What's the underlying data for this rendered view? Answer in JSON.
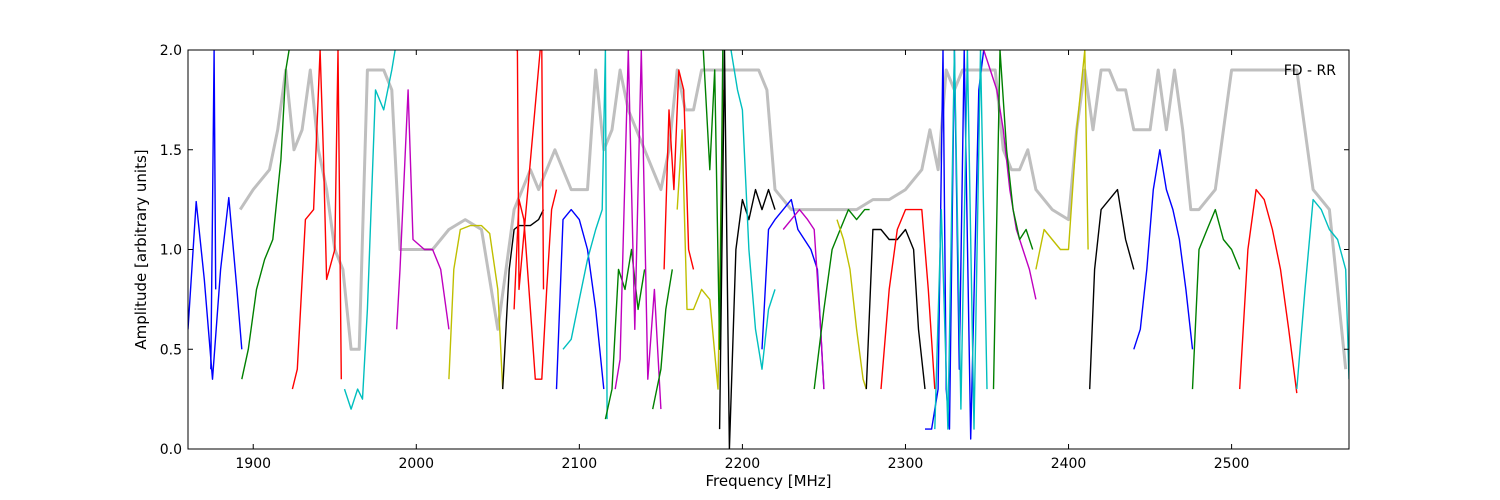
{
  "chart_data": {
    "type": "line",
    "annotation": "FD - RR",
    "xlabel": "Frequency [MHz]",
    "ylabel": "Amplitude [arbitrary units]",
    "xlim": [
      1860,
      2572
    ],
    "ylim": [
      0.0,
      2.0
    ],
    "xticks": [
      1900,
      2000,
      2100,
      2200,
      2300,
      2400,
      2500
    ],
    "yticks": [
      0.0,
      0.5,
      1.0,
      1.5,
      2.0
    ],
    "xtick_labels": [
      "1900",
      "2000",
      "2100",
      "2200",
      "2300",
      "2400",
      "2500"
    ],
    "ytick_labels": [
      "0.0",
      "0.5",
      "1.0",
      "1.5",
      "2.0"
    ],
    "grid": false,
    "colors": {
      "background_trace": "#bfbfbf",
      "b": "#0000ff",
      "g": "#008000",
      "r": "#ff0000",
      "c": "#00bfbf",
      "m": "#bf00bf",
      "y": "#bfbf00",
      "k": "#000000"
    },
    "background_trace": {
      "x": [
        1860,
        1880,
        1890,
        1892,
        1900,
        1910,
        1915,
        1920,
        1925,
        1930,
        1935,
        1940,
        1945,
        1950,
        1955,
        1960,
        1965,
        1970,
        1975,
        1980,
        1985,
        1990,
        2000,
        2010,
        2020,
        2030,
        2040,
        2050,
        2055,
        2060,
        2065,
        2070,
        2075,
        2080,
        2085,
        2090,
        2095,
        2100,
        2105,
        2110,
        2115,
        2120,
        2125,
        2130,
        2135,
        2140,
        2145,
        2150,
        2155,
        2160,
        2165,
        2170,
        2175,
        2180,
        2185,
        2190,
        2195,
        2200,
        2205,
        2210,
        2215,
        2220,
        2230,
        2240,
        2250,
        2260,
        2270,
        2280,
        2290,
        2300,
        2310,
        2315,
        2320,
        2325,
        2330,
        2335,
        2340,
        2345,
        2350,
        2355,
        2360,
        2365,
        2370,
        2375,
        2380,
        2390,
        2400,
        2405,
        2410,
        2415,
        2420,
        2425,
        2430,
        2435,
        2440,
        2445,
        2450,
        2455,
        2460,
        2465,
        2470,
        2475,
        2480,
        2490,
        2500,
        2510,
        2520,
        2530,
        2540,
        2550,
        2560,
        2570
      ],
      "y": [
        null,
        null,
        null,
        1.2,
        1.3,
        1.4,
        1.6,
        1.9,
        1.5,
        1.6,
        1.9,
        1.5,
        1.3,
        1.0,
        0.9,
        0.5,
        0.5,
        1.9,
        1.9,
        1.9,
        1.8,
        1.0,
        1.0,
        1.0,
        1.1,
        1.15,
        1.1,
        0.6,
        0.9,
        1.2,
        1.3,
        1.4,
        1.3,
        1.4,
        1.5,
        1.4,
        1.3,
        1.3,
        1.3,
        1.9,
        1.5,
        1.6,
        1.9,
        1.7,
        1.6,
        1.5,
        1.4,
        1.3,
        1.5,
        1.9,
        1.7,
        1.7,
        1.9,
        1.9,
        1.9,
        1.9,
        1.9,
        1.9,
        1.9,
        1.9,
        1.8,
        1.3,
        1.2,
        1.2,
        1.2,
        1.2,
        1.2,
        1.25,
        1.25,
        1.3,
        1.4,
        1.6,
        1.4,
        1.9,
        1.8,
        1.9,
        1.9,
        1.9,
        1.9,
        1.9,
        1.5,
        1.4,
        1.4,
        1.5,
        1.3,
        1.2,
        1.15,
        1.6,
        1.9,
        1.6,
        1.9,
        1.9,
        1.8,
        1.8,
        1.6,
        1.6,
        1.6,
        1.9,
        1.6,
        1.9,
        1.6,
        1.2,
        1.2,
        1.3,
        1.9,
        1.9,
        1.9,
        1.9,
        1.9,
        1.3,
        1.2,
        0.4
      ]
    },
    "series": [
      {
        "color": "b",
        "x": [
          1860,
          1865,
          1870,
          1875,
          1880,
          1885,
          1890,
          1893
        ],
        "y": [
          0.6,
          1.24,
          0.85,
          0.35,
          0.9,
          1.26,
          0.8,
          0.5
        ]
      },
      {
        "color": "b",
        "x": [
          1874,
          1875,
          1876,
          1877
        ],
        "y": [
          0.4,
          1.2,
          2.0,
          0.8
        ]
      },
      {
        "color": "g",
        "x": [
          1893,
          1897,
          1902,
          1907,
          1912,
          1917,
          1920,
          1922
        ],
        "y": [
          0.35,
          0.5,
          0.8,
          0.95,
          1.05,
          1.45,
          1.9,
          2.0
        ]
      },
      {
        "color": "r",
        "x": [
          1924,
          1927,
          1932,
          1937,
          1941,
          1943,
          1945,
          1950,
          1952,
          1954
        ],
        "y": [
          0.3,
          0.4,
          1.15,
          1.2,
          2.0,
          1.5,
          0.85,
          1.0,
          2.0,
          0.35
        ]
      },
      {
        "color": "c",
        "x": [
          1956,
          1960,
          1964,
          1967,
          1970,
          1975,
          1980,
          1985,
          1987
        ],
        "y": [
          0.3,
          0.2,
          0.3,
          0.25,
          0.7,
          1.8,
          1.7,
          1.9,
          2.0
        ]
      },
      {
        "color": "m",
        "x": [
          1988,
          1990,
          1995,
          1998,
          2005,
          2010,
          2015,
          2020
        ],
        "y": [
          0.6,
          0.9,
          1.8,
          1.05,
          1.0,
          1.0,
          0.9,
          0.6
        ]
      },
      {
        "color": "y",
        "x": [
          2020,
          2023,
          2027,
          2033,
          2040,
          2045,
          2050,
          2053
        ],
        "y": [
          0.35,
          0.9,
          1.1,
          1.12,
          1.12,
          1.08,
          0.8,
          0.3
        ]
      },
      {
        "color": "k",
        "x": [
          2053,
          2057,
          2060,
          2063,
          2065,
          2070,
          2075,
          2078
        ],
        "y": [
          0.3,
          0.9,
          1.1,
          1.12,
          1.12,
          1.12,
          1.15,
          1.2
        ]
      },
      {
        "color": "r",
        "x": [
          2060,
          2063,
          2066,
          2070,
          2073,
          2077,
          2080,
          2083,
          2086
        ],
        "y": [
          0.7,
          1.25,
          1.15,
          0.7,
          0.35,
          0.35,
          0.8,
          1.2,
          1.3
        ]
      },
      {
        "color": "r",
        "x": [
          2061,
          2062,
          2063,
          2076,
          2077,
          2078
        ],
        "y": [
          2.0,
          2.0,
          0.8,
          2.0,
          2.0,
          0.8
        ]
      },
      {
        "color": "b",
        "x": [
          2086,
          2090,
          2095,
          2100,
          2105,
          2110,
          2115
        ],
        "y": [
          0.3,
          1.15,
          1.2,
          1.15,
          1.0,
          0.7,
          0.3
        ]
      },
      {
        "color": "c",
        "x": [
          2090,
          2095,
          2100,
          2105,
          2110,
          2114,
          2116,
          2117
        ],
        "y": [
          0.5,
          0.55,
          0.75,
          0.95,
          1.1,
          1.2,
          2.0,
          0.15
        ]
      },
      {
        "color": "g",
        "x": [
          2116,
          2120,
          2124,
          2128,
          2132,
          2136,
          2140
        ],
        "y": [
          0.15,
          0.3,
          0.9,
          0.8,
          1.0,
          0.7,
          0.9
        ]
      },
      {
        "color": "m",
        "x": [
          2122,
          2125,
          2130,
          2134,
          2138,
          2142,
          2146,
          2150
        ],
        "y": [
          0.3,
          0.45,
          2.0,
          0.6,
          2.0,
          0.35,
          0.8,
          0.2
        ]
      },
      {
        "color": "g",
        "x": [
          2145,
          2150,
          2153,
          2157
        ],
        "y": [
          0.2,
          0.4,
          0.7,
          0.9
        ]
      },
      {
        "color": "r",
        "x": [
          2152,
          2155,
          2158,
          2161,
          2164,
          2167,
          2170
        ],
        "y": [
          0.9,
          1.7,
          1.3,
          1.9,
          1.8,
          1.0,
          0.9
        ]
      },
      {
        "color": "y",
        "x": [
          2160,
          2163,
          2166,
          2170,
          2175,
          2180,
          2185,
          2188
        ],
        "y": [
          1.2,
          1.6,
          0.7,
          0.7,
          0.8,
          0.75,
          0.3,
          1.8
        ]
      },
      {
        "color": "g",
        "x": [
          2176,
          2180,
          2183,
          2186,
          2188
        ],
        "y": [
          2.0,
          1.4,
          1.9,
          0.5,
          2.0
        ]
      },
      {
        "color": "k",
        "x": [
          2186,
          2189,
          2192,
          2196,
          2200,
          2204,
          2208,
          2212,
          2216,
          2220
        ],
        "y": [
          0.1,
          2.0,
          0.0,
          1.0,
          1.25,
          1.15,
          1.3,
          1.2,
          1.3,
          1.2
        ]
      },
      {
        "color": "c",
        "x": [
          2193,
          2197,
          2200,
          2204,
          2208,
          2212,
          2216,
          2220
        ],
        "y": [
          2.0,
          1.8,
          1.7,
          1.0,
          0.6,
          0.4,
          0.7,
          0.8
        ]
      },
      {
        "color": "b",
        "x": [
          2212,
          2216,
          2220,
          2225,
          2230,
          2234,
          2238,
          2242,
          2246,
          2250
        ],
        "y": [
          0.5,
          1.1,
          1.15,
          1.2,
          1.25,
          1.1,
          1.05,
          1.0,
          0.9,
          0.3
        ]
      },
      {
        "color": "m",
        "x": [
          2225,
          2230,
          2235,
          2240,
          2244,
          2248,
          2250
        ],
        "y": [
          1.1,
          1.15,
          1.2,
          1.15,
          1.1,
          0.6,
          0.3
        ]
      },
      {
        "color": "g",
        "x": [
          2244,
          2250,
          2255,
          2260,
          2265,
          2270,
          2275,
          2278
        ],
        "y": [
          0.3,
          0.7,
          1.0,
          1.1,
          1.2,
          1.15,
          1.2,
          1.2
        ]
      },
      {
        "color": "y",
        "x": [
          2258,
          2262,
          2266,
          2270,
          2274,
          2276
        ],
        "y": [
          1.15,
          1.05,
          0.9,
          0.6,
          0.35,
          0.3
        ]
      },
      {
        "color": "k",
        "x": [
          2276,
          2280,
          2285,
          2290,
          2295,
          2300,
          2305,
          2308,
          2312
        ],
        "y": [
          0.3,
          1.1,
          1.1,
          1.05,
          1.05,
          1.1,
          1.0,
          0.6,
          0.3
        ]
      },
      {
        "color": "r",
        "x": [
          2285,
          2290,
          2295,
          2300,
          2305,
          2310,
          2314,
          2318
        ],
        "y": [
          0.3,
          0.8,
          1.1,
          1.2,
          1.2,
          1.2,
          0.8,
          0.3
        ]
      },
      {
        "color": "b",
        "x": [
          2312,
          2316,
          2320,
          2323,
          2325,
          2327,
          2330,
          2333,
          2336,
          2340,
          2345,
          2348
        ],
        "y": [
          0.1,
          0.1,
          0.3,
          2.0,
          0.3,
          0.1,
          2.0,
          0.4,
          2.0,
          0.05,
          1.8,
          2.0
        ]
      },
      {
        "color": "c",
        "x": [
          2318,
          2322,
          2326,
          2330,
          2334,
          2338,
          2342,
          2346,
          2350
        ],
        "y": [
          0.1,
          1.2,
          0.1,
          2.0,
          0.2,
          2.0,
          0.1,
          2.0,
          0.3
        ]
      },
      {
        "color": "m",
        "x": [
          2348,
          2352,
          2356,
          2360,
          2364,
          2368,
          2372,
          2376,
          2380
        ],
        "y": [
          2.0,
          1.9,
          1.8,
          1.6,
          1.3,
          1.1,
          1.0,
          0.9,
          0.75
        ]
      },
      {
        "color": "g",
        "x": [
          2354,
          2358,
          2362,
          2366,
          2370,
          2374,
          2378
        ],
        "y": [
          0.3,
          2.0,
          1.5,
          1.2,
          1.05,
          1.1,
          1.0
        ]
      },
      {
        "color": "y",
        "x": [
          2380,
          2385,
          2390,
          2395,
          2400,
          2405,
          2410,
          2412
        ],
        "y": [
          0.9,
          1.1,
          1.05,
          1.0,
          1.0,
          1.6,
          2.0,
          1.0
        ]
      },
      {
        "color": "k",
        "x": [
          2413,
          2416,
          2420,
          2425,
          2430,
          2435,
          2440
        ],
        "y": [
          0.3,
          0.9,
          1.2,
          1.25,
          1.3,
          1.05,
          0.9
        ]
      },
      {
        "color": "b",
        "x": [
          2440,
          2444,
          2448,
          2452,
          2456,
          2460,
          2464,
          2468,
          2472,
          2476
        ],
        "y": [
          0.5,
          0.6,
          0.9,
          1.3,
          1.5,
          1.3,
          1.2,
          1.05,
          0.8,
          0.5
        ]
      },
      {
        "color": "g",
        "x": [
          2476,
          2480,
          2485,
          2490,
          2495,
          2500,
          2505
        ],
        "y": [
          0.3,
          1.0,
          1.1,
          1.2,
          1.05,
          1.0,
          0.9
        ]
      },
      {
        "color": "r",
        "x": [
          2505,
          2510,
          2515,
          2520,
          2525,
          2530,
          2535,
          2540
        ],
        "y": [
          0.3,
          1.0,
          1.3,
          1.25,
          1.1,
          0.9,
          0.6,
          0.28
        ]
      },
      {
        "color": "c",
        "x": [
          2540,
          2545,
          2550,
          2555,
          2560,
          2565,
          2570,
          2572
        ],
        "y": [
          0.3,
          0.8,
          1.25,
          1.2,
          1.1,
          1.05,
          0.9,
          0.35
        ]
      }
    ]
  }
}
